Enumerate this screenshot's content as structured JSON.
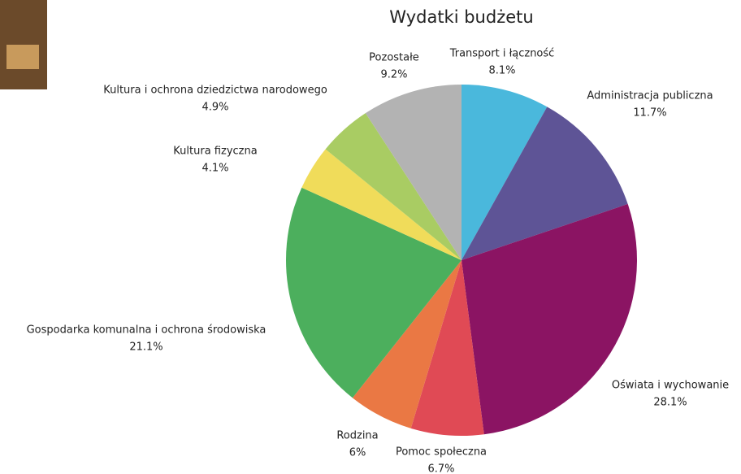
{
  "chart_data": {
    "type": "pie",
    "title": "Wydatki budżetu",
    "categories": [
      "Transport i łączność",
      "Administracja publiczna",
      "Oświata i wychowanie",
      "Pomoc społeczna",
      "Rodzina",
      "Gospodarka komunalna i ochrona środowiska",
      "Kultura fizyczna",
      "Kultura i ochrona dziedzictwa narodowego",
      "Pozostałe"
    ],
    "values": [
      8.1,
      11.7,
      28.1,
      6.7,
      6,
      21.1,
      4.1,
      4.9,
      9.2
    ],
    "value_labels": [
      "8.1%",
      "11.7%",
      "28.1%",
      "6.7%",
      "6%",
      "21.1%",
      "4.1%",
      "4.9%",
      "9.2%"
    ],
    "colors": [
      "#4ab8dc",
      "#5e5496",
      "#8b1463",
      "#e04a55",
      "#ea7844",
      "#4caf5d",
      "#f0dc5a",
      "#a9cc63",
      "#b3b3b3"
    ]
  }
}
